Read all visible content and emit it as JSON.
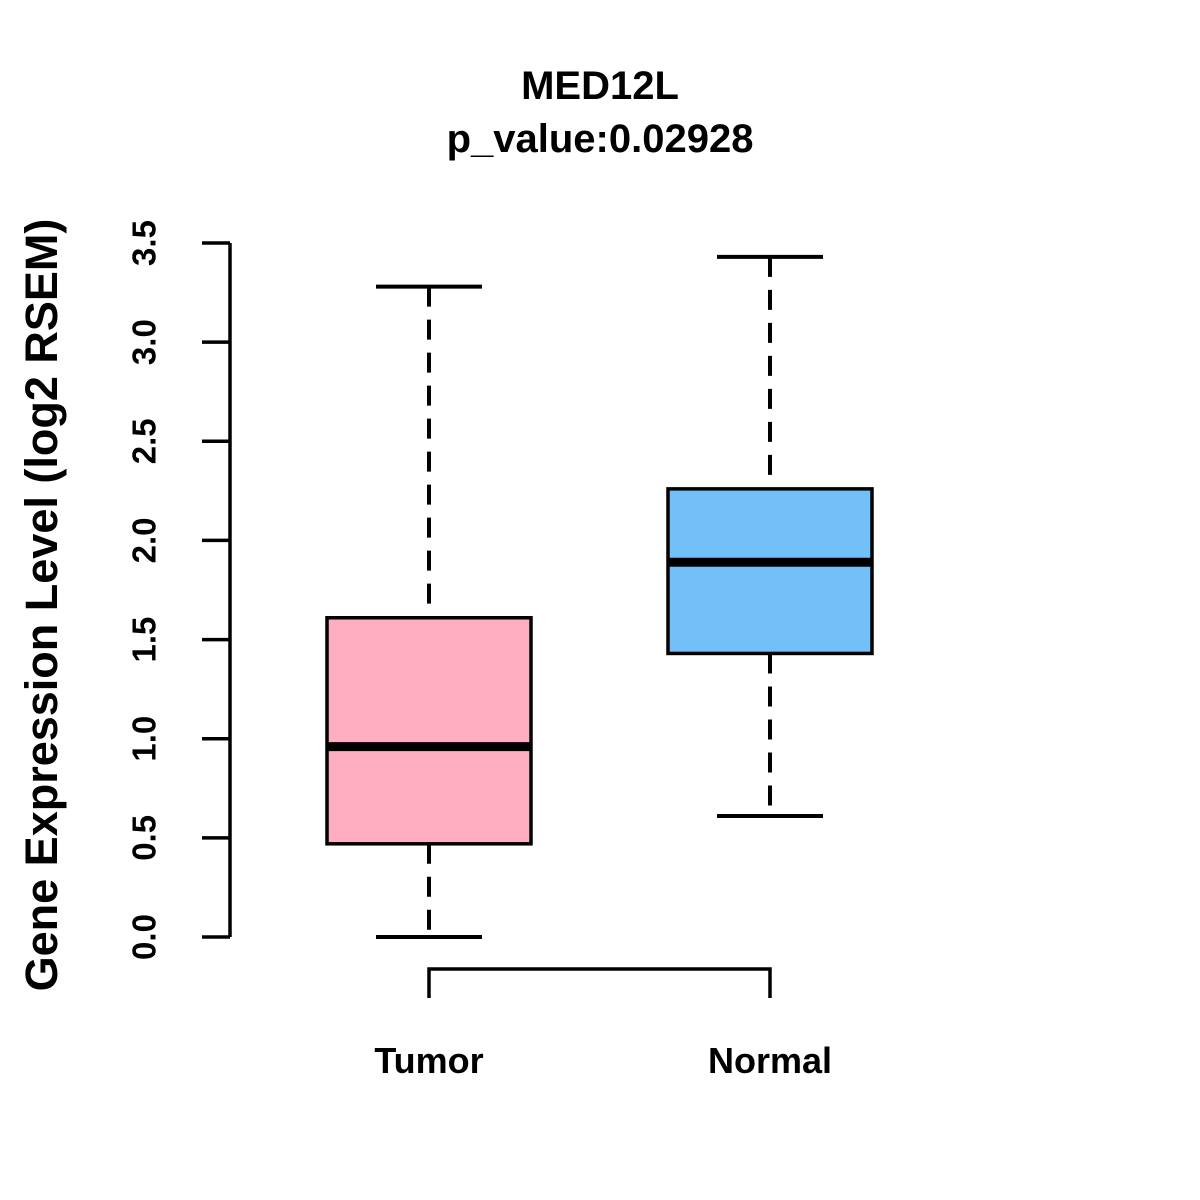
{
  "header": {
    "title": "MED12L",
    "subtitle": "p_value:0.02928"
  },
  "chart_data": {
    "type": "boxplot",
    "title": "MED12L",
    "subtitle": "p_value:0.02928",
    "p_value": 0.02928,
    "ylabel": "Gene Expression Level (log2 RSEM)",
    "ylim": [
      0.0,
      3.5
    ],
    "y_ticks": [
      "0.0",
      "0.5",
      "1.0",
      "1.5",
      "2.0",
      "2.5",
      "3.0",
      "3.5"
    ],
    "grid": false,
    "legend": "none",
    "categories": [
      "Tumor",
      "Normal"
    ],
    "series": [
      {
        "name": "Tumor",
        "fill_color": "#FFAEC1",
        "min": 0.0,
        "q1": 0.47,
        "median": 0.96,
        "q3": 1.61,
        "max": 3.28
      },
      {
        "name": "Normal",
        "fill_color": "#73BFF7",
        "min": 0.61,
        "q1": 1.43,
        "median": 1.89,
        "q3": 2.26,
        "max": 3.43
      }
    ],
    "colors": {
      "box_border": "#000000",
      "median_line": "#000000",
      "whisker": "#000000",
      "text": "#000000"
    }
  }
}
